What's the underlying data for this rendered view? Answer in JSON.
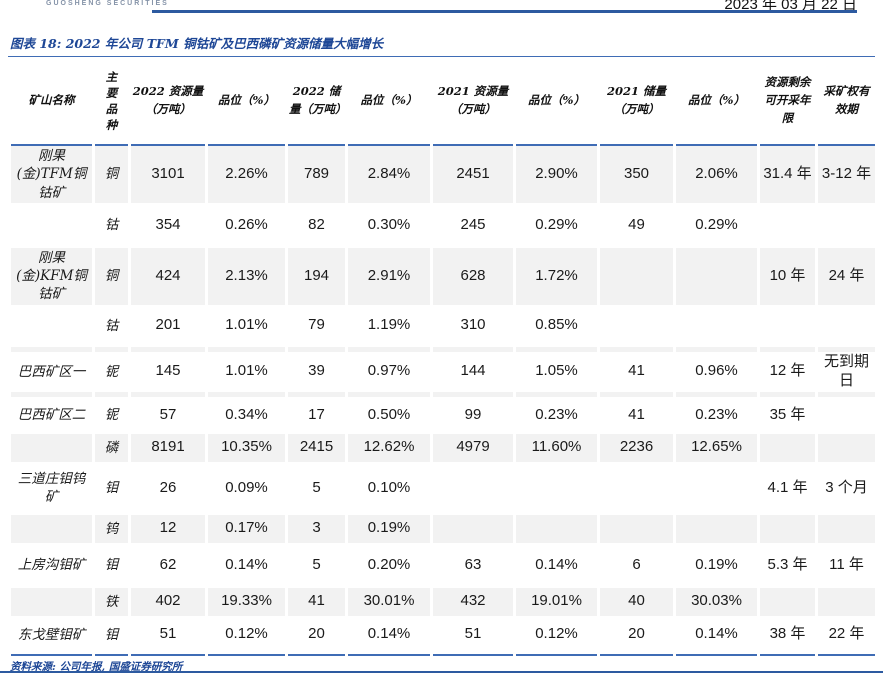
{
  "header": {
    "logo_subtext": "GUOSHENG SECURITIES",
    "date": "2023 年 03 月 22 日"
  },
  "figure": {
    "title": "图表 18: 2022 年公司 TFM 铜钴矿及巴西磷矿资源储量大幅增长",
    "source": "资料来源: 公司年报, 国盛证券研究所"
  },
  "colors": {
    "brand_navy": "#1e4796",
    "rule_blue": "#2d5aa0",
    "table_border_blue": "#3f6cb5",
    "stripe_gray": "#f2f2f2"
  },
  "table": {
    "headers": [
      "矿山名称",
      "主要品种",
      "2022 资源量（万吨）",
      "品位（%）",
      "2022 储量（万吨）",
      "品位（%）",
      "2021 资源量（万吨）",
      "品位（%）",
      "2021 储量（万吨）",
      "品位（%）",
      "资源剩余可开采年限",
      "采矿权有效期"
    ],
    "rows": [
      [
        "刚果(金)TFM铜钴矿",
        "铜",
        "3101",
        "2.26%",
        "789",
        "2.84%",
        "2451",
        "2.90%",
        "350",
        "2.06%",
        "31.4 年",
        "3-12 年"
      ],
      [
        "",
        "钴",
        "354",
        "0.26%",
        "82",
        "0.30%",
        "245",
        "0.29%",
        "49",
        "0.29%",
        "",
        ""
      ],
      [
        "刚果(金)KFM铜钴矿",
        "铜",
        "424",
        "2.13%",
        "194",
        "2.91%",
        "628",
        "1.72%",
        "",
        "",
        "10 年",
        "24 年"
      ],
      [
        "",
        "钴",
        "201",
        "1.01%",
        "79",
        "1.19%",
        "310",
        "0.85%",
        "",
        "",
        "",
        ""
      ],
      [
        "巴西矿区一",
        "铌",
        "145",
        "1.01%",
        "39",
        "0.97%",
        "144",
        "1.05%",
        "41",
        "0.96%",
        "12 年",
        "无到期日"
      ],
      [
        "巴西矿区二",
        "铌",
        "57",
        "0.34%",
        "17",
        "0.50%",
        "99",
        "0.23%",
        "41",
        "0.23%",
        "35 年",
        ""
      ],
      [
        "",
        "磷",
        "8191",
        "10.35%",
        "2415",
        "12.62%",
        "4979",
        "11.60%",
        "2236",
        "12.65%",
        "",
        ""
      ],
      [
        "三道庄钼钨矿",
        "钼",
        "26",
        "0.09%",
        "5",
        "0.10%",
        "",
        "",
        "",
        "",
        "4.1 年",
        "3 个月"
      ],
      [
        "",
        "钨",
        "12",
        "0.17%",
        "3",
        "0.19%",
        "",
        "",
        "",
        "",
        "",
        ""
      ],
      [
        "上房沟钼矿",
        "钼",
        "62",
        "0.14%",
        "5",
        "0.20%",
        "63",
        "0.14%",
        "6",
        "0.19%",
        "5.3 年",
        "11 年"
      ],
      [
        "",
        "铁",
        "402",
        "19.33%",
        "41",
        "30.01%",
        "432",
        "19.01%",
        "40",
        "30.03%",
        "",
        ""
      ],
      [
        "东戈壁钼矿",
        "钼",
        "51",
        "0.12%",
        "20",
        "0.14%",
        "51",
        "0.12%",
        "20",
        "0.14%",
        "38 年",
        "22 年"
      ]
    ]
  }
}
